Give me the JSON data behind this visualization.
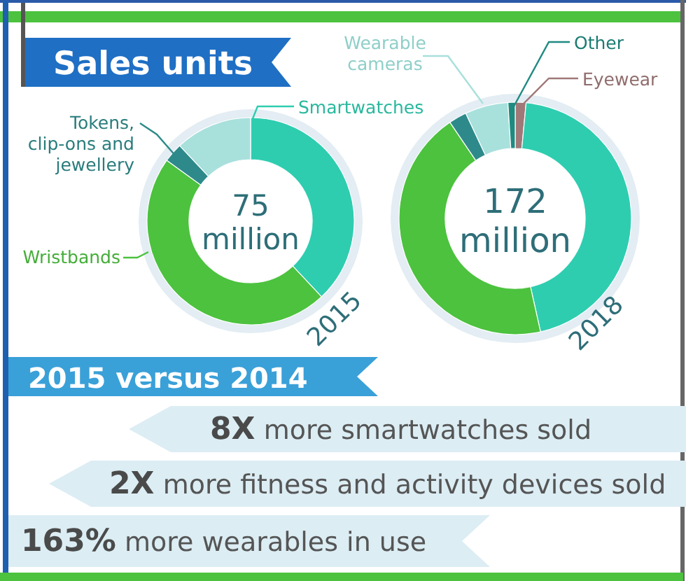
{
  "chart_data": [
    {
      "type": "donut",
      "title": "Sales units",
      "subtitle": "2015",
      "categories": [
        "Smartwatches",
        "Wristbands",
        "Tokens, clip-ons and jewellery",
        null
      ],
      "values": [
        38,
        47,
        3,
        12
      ],
      "colors": [
        "#2ecdb0",
        "#4cc23e",
        "#2e8a8a",
        "#a8e0dc"
      ],
      "annotations": [
        "75 million"
      ]
    },
    {
      "type": "donut",
      "subtitle": "2018",
      "categories": [
        "Eyewear",
        null,
        null,
        null,
        "Wearable cameras",
        "Other"
      ],
      "values": [
        1.5,
        45,
        44,
        2.5,
        6,
        1
      ],
      "colors": [
        "#a07878",
        "#2ecdb0",
        "#4cc23e",
        "#2e8a8a",
        "#a8e0dc",
        "#1f8a80"
      ],
      "annotations": [
        "172 million"
      ]
    },
    {
      "type": "other",
      "title": "2015 versus 2014",
      "annotations": [
        "8X more smartwatches sold",
        "2X more fitness and activity devices sold",
        "163% more wearables in use"
      ]
    }
  ]
}
